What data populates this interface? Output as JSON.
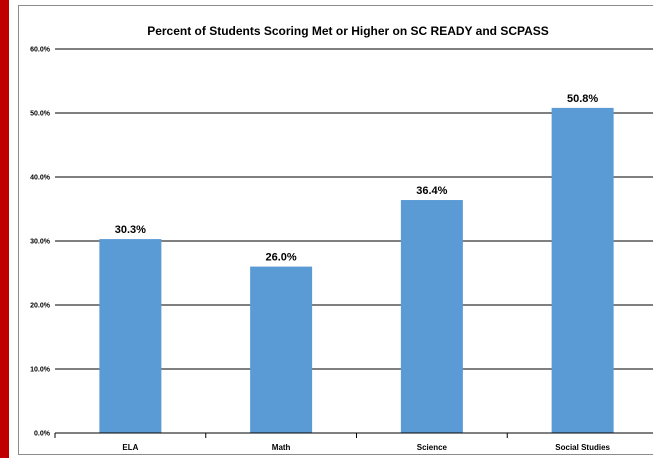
{
  "chart_data": {
    "type": "bar",
    "title": "Percent of Students Scoring Met or Higher on SC READY and SCPASS",
    "categories": [
      "ELA",
      "Math",
      "Science",
      "Social Studies"
    ],
    "values": [
      30.3,
      26.0,
      36.4,
      50.8
    ],
    "data_labels": [
      "30.3%",
      "26.0%",
      "36.4%",
      "50.8%"
    ],
    "ylim": [
      0,
      60
    ],
    "y_ticks": [
      0,
      10,
      20,
      30,
      40,
      50,
      60
    ],
    "y_tick_labels": [
      "0.0%",
      "10.0%",
      "20.0%",
      "30.0%",
      "40.0%",
      "50.0%",
      "60.0%"
    ],
    "xlabel": "",
    "ylabel": "",
    "grid": true,
    "legend": "none",
    "colors": {
      "bar": "#5b9bd5",
      "gridline": "#000000",
      "frame_accent": "#c00000"
    }
  }
}
